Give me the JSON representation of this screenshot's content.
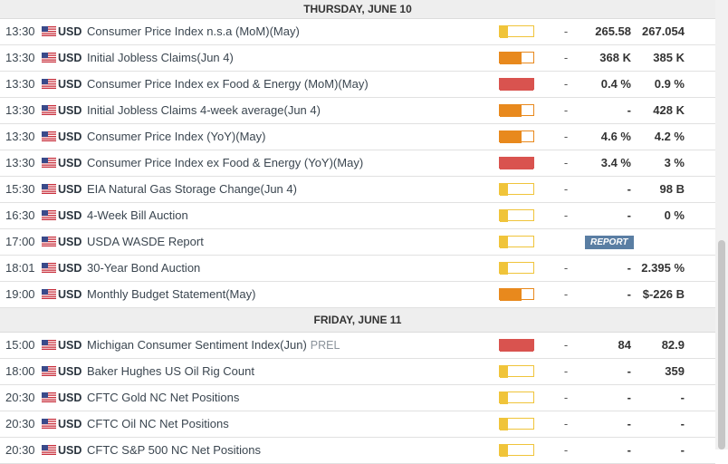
{
  "days": [
    {
      "header": "THURSDAY, JUNE 10",
      "rows": [
        {
          "time": "13:30",
          "currency": "USD",
          "event": "Consumer Price Index n.s.a (MoM)(May)",
          "tag": "",
          "impact": "low",
          "actual": "-",
          "consensus": "265.58",
          "previous": "267.054",
          "report": ""
        },
        {
          "time": "13:30",
          "currency": "USD",
          "event": "Initial Jobless Claims(Jun 4)",
          "tag": "",
          "impact": "medium",
          "actual": "-",
          "consensus": "368 K",
          "previous": "385 K",
          "report": ""
        },
        {
          "time": "13:30",
          "currency": "USD",
          "event": "Consumer Price Index ex Food & Energy (MoM)(May)",
          "tag": "",
          "impact": "high",
          "actual": "-",
          "consensus": "0.4 %",
          "previous": "0.9 %",
          "report": ""
        },
        {
          "time": "13:30",
          "currency": "USD",
          "event": "Initial Jobless Claims 4-week average(Jun 4)",
          "tag": "",
          "impact": "medium",
          "actual": "-",
          "consensus": "-",
          "previous": "428 K",
          "report": ""
        },
        {
          "time": "13:30",
          "currency": "USD",
          "event": "Consumer Price Index (YoY)(May)",
          "tag": "",
          "impact": "medium",
          "actual": "-",
          "consensus": "4.6 %",
          "previous": "4.2 %",
          "report": ""
        },
        {
          "time": "13:30",
          "currency": "USD",
          "event": "Consumer Price Index ex Food & Energy (YoY)(May)",
          "tag": "",
          "impact": "high",
          "actual": "-",
          "consensus": "3.4 %",
          "previous": "3 %",
          "report": ""
        },
        {
          "time": "15:30",
          "currency": "USD",
          "event": "EIA Natural Gas Storage Change(Jun 4)",
          "tag": "",
          "impact": "low",
          "actual": "-",
          "consensus": "-",
          "previous": "98 B",
          "report": ""
        },
        {
          "time": "16:30",
          "currency": "USD",
          "event": "4-Week Bill Auction",
          "tag": "",
          "impact": "low",
          "actual": "-",
          "consensus": "-",
          "previous": "0 %",
          "report": ""
        },
        {
          "time": "17:00",
          "currency": "USD",
          "event": "USDA WASDE Report",
          "tag": "",
          "impact": "low",
          "actual": "",
          "consensus": "",
          "previous": "",
          "report": "REPORT"
        },
        {
          "time": "18:01",
          "currency": "USD",
          "event": "30-Year Bond Auction",
          "tag": "",
          "impact": "low",
          "actual": "-",
          "consensus": "-",
          "previous": "2.395 %",
          "report": ""
        },
        {
          "time": "19:00",
          "currency": "USD",
          "event": "Monthly Budget Statement(May)",
          "tag": "",
          "impact": "medium",
          "actual": "-",
          "consensus": "-",
          "previous": "$-226 B",
          "report": ""
        }
      ]
    },
    {
      "header": "FRIDAY, JUNE 11",
      "rows": [
        {
          "time": "15:00",
          "currency": "USD",
          "event": "Michigan Consumer Sentiment Index(Jun)",
          "tag": "PREL",
          "impact": "high",
          "actual": "-",
          "consensus": "84",
          "previous": "82.9",
          "report": ""
        },
        {
          "time": "18:00",
          "currency": "USD",
          "event": "Baker Hughes US Oil Rig Count",
          "tag": "",
          "impact": "low",
          "actual": "-",
          "consensus": "-",
          "previous": "359",
          "report": ""
        },
        {
          "time": "20:30",
          "currency": "USD",
          "event": "CFTC Gold NC Net Positions",
          "tag": "",
          "impact": "low",
          "actual": "-",
          "consensus": "-",
          "previous": "-",
          "report": ""
        },
        {
          "time": "20:30",
          "currency": "USD",
          "event": "CFTC Oil NC Net Positions",
          "tag": "",
          "impact": "low",
          "actual": "-",
          "consensus": "-",
          "previous": "-",
          "report": ""
        },
        {
          "time": "20:30",
          "currency": "USD",
          "event": "CFTC S&P 500 NC Net Positions",
          "tag": "",
          "impact": "low",
          "actual": "-",
          "consensus": "-",
          "previous": "-",
          "report": ""
        }
      ]
    }
  ],
  "impact_levels": {
    "low": {
      "fill": 0.25,
      "color": "#f0c43a"
    },
    "medium": {
      "fill": 0.66,
      "color": "#e8891d"
    },
    "high": {
      "fill": 1.0,
      "color": "#d9534f"
    }
  },
  "flag_icon": "us-flag-icon",
  "colors": {
    "header_bg": "#eeeeee",
    "report_badge": "#5a7ea3"
  }
}
